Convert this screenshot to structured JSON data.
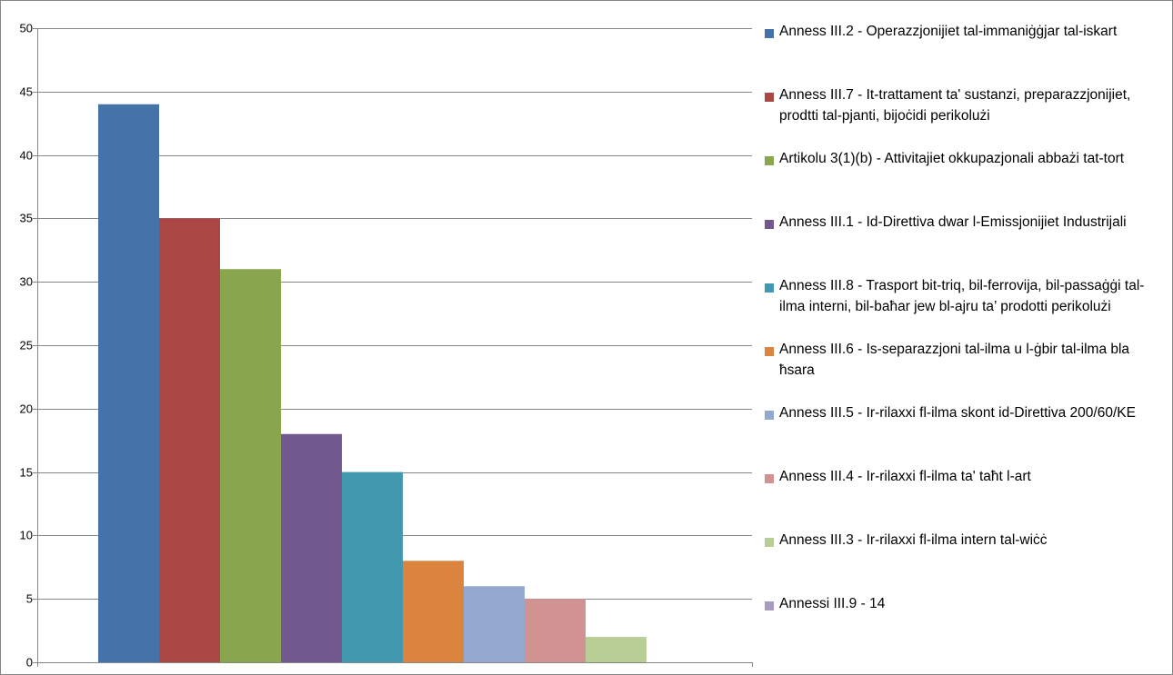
{
  "chart_data": {
    "type": "bar",
    "title": "",
    "xlabel": "",
    "ylabel": "",
    "ylim": [
      0,
      50
    ],
    "yticks": [
      0,
      5,
      10,
      15,
      20,
      25,
      30,
      35,
      40,
      45,
      50
    ],
    "grid": true,
    "legend_position": "right",
    "series": [
      {
        "name": "Anness III.2 - Operazzjonijiet tal-immaniġġjar tal-iskart",
        "value": 44,
        "color": "#4572A7"
      },
      {
        "name": "Anness III.7 - It-trattament ta' sustanzi, preparazzjonijiet, prodtti tal-pjanti, bijoċidi perikolużi",
        "value": 35,
        "color": "#AA4643"
      },
      {
        "name": "Artikolu 3(1)(b) - Attivitajiet okkupazjonali abbażi tat-tort",
        "value": 31,
        "color": "#89A54E"
      },
      {
        "name": "Anness III.1 - Id-Direttiva dwar l-Emissjonijiet Industrijali",
        "value": 18,
        "color": "#71588F"
      },
      {
        "name": "Anness III.8 - Trasport bit-triq, bil-ferrovija, bil-passaġġi tal-ilma interni, bil-baħar jew bl-ajru ta’ prodotti perikolużi",
        "value": 15,
        "color": "#4198AF"
      },
      {
        "name": "Anness III.6 -  Is-separazzjoni tal-ilma u l-ġbir tal-ilma bla ħsara",
        "value": 8,
        "color": "#DB843D"
      },
      {
        "name": "Anness III.5 - Ir-rilaxxi fl-ilma skont id-Direttiva 200/60/KE",
        "value": 6,
        "color": "#93A9CF"
      },
      {
        "name": "Anness III.4 - Ir-rilaxxi fl-ilma ta' taħt l-art",
        "value": 5,
        "color": "#D19392"
      },
      {
        "name": "Anness III.3 - Ir-rilaxxi fl-ilma intern tal-wiċċ",
        "value": 2,
        "color": "#B9CD96"
      },
      {
        "name": "Annessi III.9 - 14",
        "value": 0,
        "color": "#A99BBD"
      }
    ]
  }
}
